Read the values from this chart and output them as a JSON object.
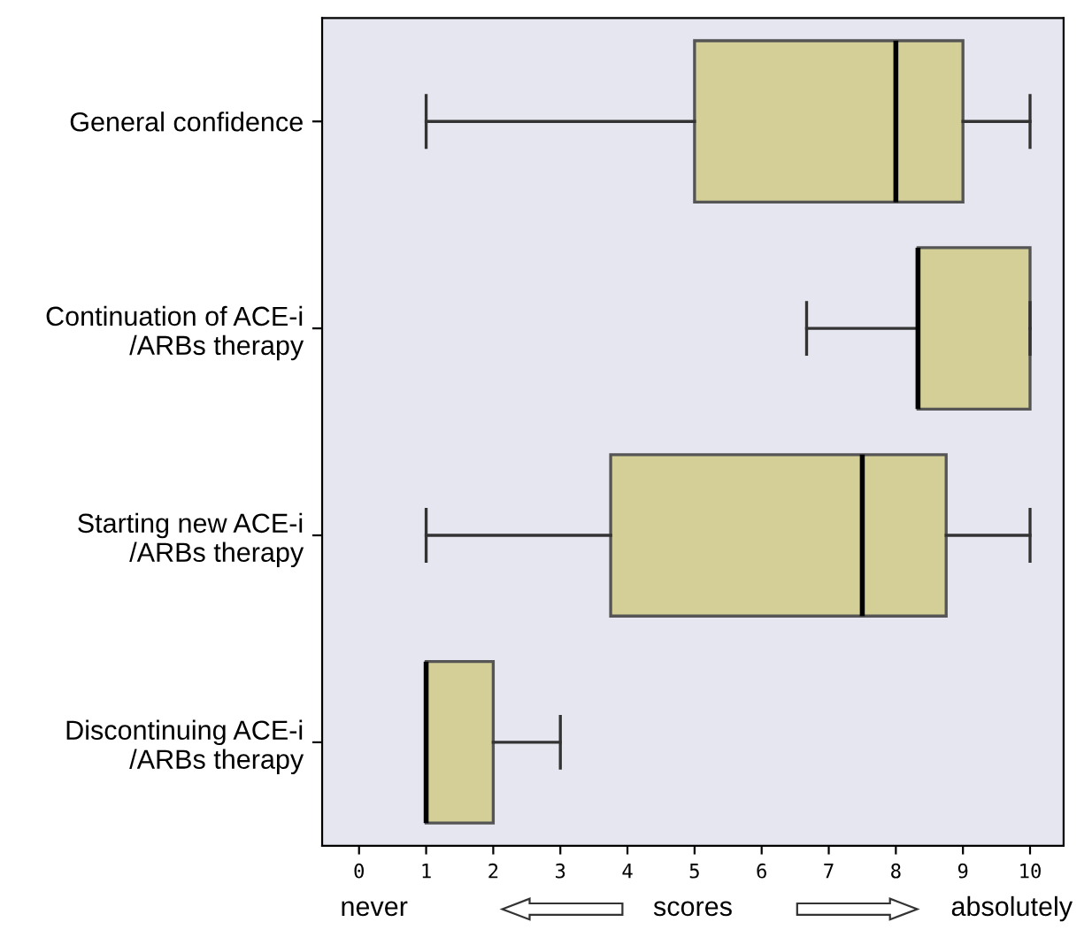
{
  "chart_data": {
    "type": "box",
    "orientation": "horizontal",
    "categories": [
      "General confidence",
      "Continuation of ACE-i\n/ARBs therapy",
      "Starting new ACE-i\n/ARBs therapy",
      "Discontinuing ACE-i\n/ARBs therapy"
    ],
    "boxes": [
      {
        "low": 1,
        "q1": 5,
        "median": 8,
        "q3": 9,
        "high": 10
      },
      {
        "low": 6.67,
        "q1": 8.33,
        "median": 8.33,
        "q3": 10,
        "high": 10
      },
      {
        "low": 1,
        "q1": 3.75,
        "median": 7.5,
        "q3": 8.75,
        "high": 10
      },
      {
        "low": 1,
        "q1": 1,
        "median": 1,
        "q3": 2,
        "high": 3
      }
    ],
    "color": "#d3cf97",
    "xlim": [
      -0.55,
      10.5
    ],
    "xticks": [
      0,
      1,
      2,
      3,
      4,
      5,
      6,
      7,
      8,
      9,
      10
    ],
    "grid": false,
    "annotations": [
      "never",
      "scores",
      "absolutely"
    ]
  }
}
